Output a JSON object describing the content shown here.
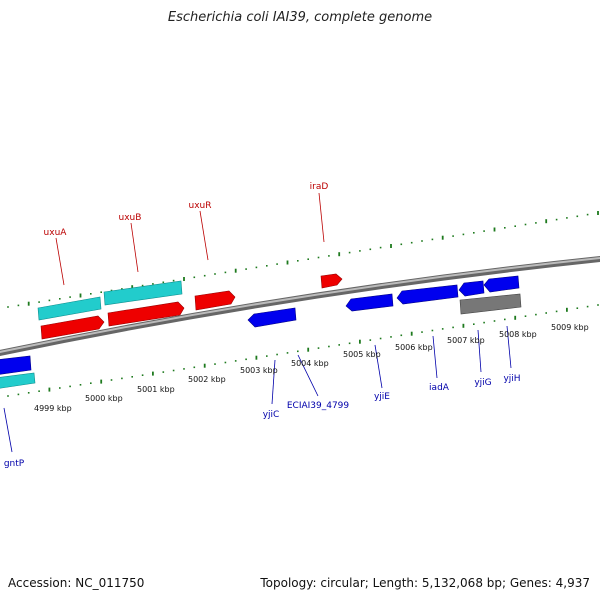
{
  "title": "Escherichia coli IAI39, complete genome",
  "footer": {
    "accession": "Accession: NC_011750",
    "topology": "Topology: circular; Length: 5,132,068 bp; Genes: 4,937"
  },
  "colors": {
    "backbone": "#888888",
    "tick": "#1e7a1e",
    "forward_gene": "#ff0000",
    "reverse_gene": "#0000ee",
    "rna": "#22cccc",
    "other": "#777777",
    "forward_label": "#bb0000",
    "reverse_label": "#0000aa"
  },
  "tick_labels": [
    "4999 kbp",
    "5000 kbp",
    "5001 kbp",
    "5002 kbp",
    "5003 kbp",
    "5004 kbp",
    "5005 kbp",
    "5006 kbp",
    "5007 kbp",
    "5008 kbp",
    "5009 kbp"
  ],
  "forward_genes": [
    "uxuA",
    "uxuB",
    "uxuR",
    "iraD"
  ],
  "reverse_genes": [
    "gntP",
    "yjiC",
    "ECIAI39_4799",
    "yjiE",
    "iadA",
    "yjiG",
    "yjiH"
  ]
}
